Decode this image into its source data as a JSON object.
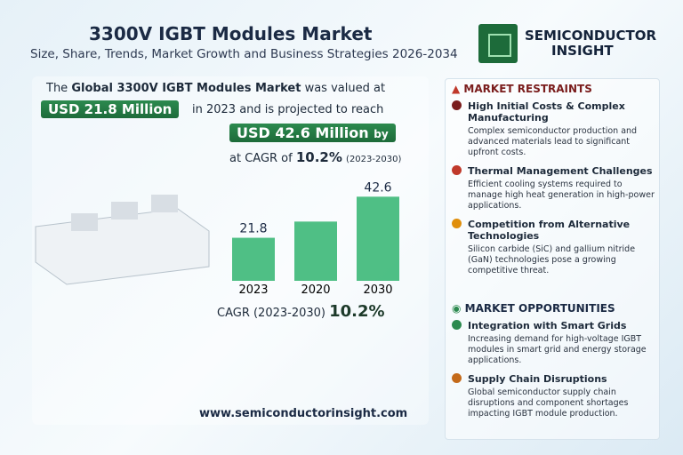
{
  "header": {
    "title": "3300V IGBT Modules Market",
    "subtitle": "Size, Share, Trends, Market Growth and Business Strategies 2026-2034",
    "brand": [
      "SEMICONDUCTOR",
      "INSIGHT"
    ]
  },
  "intro": {
    "line1_prefix": "The",
    "line1_bold": "Global 3300V IGBT Modules Market",
    "line1_suffix": "was valued at",
    "value_start": "USD 21.8 Million",
    "line2": "in 2023 and is projected to reach",
    "value_end": "USD 42.6 Million",
    "by": "by",
    "cagr_prefix": "at CAGR of",
    "cagr_value": "10.2%",
    "cagr_period": "(2023-2030)"
  },
  "chart_data": {
    "type": "bar",
    "categories": [
      "2023",
      "2020",
      "2030"
    ],
    "values": [
      21.8,
      30,
      42.6
    ],
    "value_labels": [
      "21.8",
      null,
      "42.6"
    ],
    "color": "#3cb878",
    "ylim": [
      0,
      45
    ]
  },
  "cagr": {
    "label": "CAGR (2023-2030)",
    "value": "10.2%"
  },
  "restraints": {
    "title": "MARKET RESTRAINTS",
    "items": [
      {
        "title": "High Initial Costs & Complex Manufacturing",
        "text": "Complex semiconductor production and advanced materials lead to significant upfront costs."
      },
      {
        "title": "Thermal Management Challenges",
        "text": "Efficient cooling systems required to manage high heat generation in high-power applications."
      },
      {
        "title": "Competition from Alternative Technologies",
        "text": "Silicon carbide (SiC) and gallium nitride (GaN) technologies pose a growing competitive threat."
      }
    ]
  },
  "opportunities": {
    "title": "MARKET OPPORTUNITIES",
    "items": [
      {
        "title": "Integration with Smart Grids",
        "text": "Increasing demand for high-voltage IGBT modules in smart grid and energy storage applications."
      },
      {
        "title": "Supply Chain Disruptions",
        "text": "Global semiconductor supply chain disruptions and component shortages impacting IGBT module production."
      }
    ]
  },
  "website": "www.semiconductorinsight.com"
}
